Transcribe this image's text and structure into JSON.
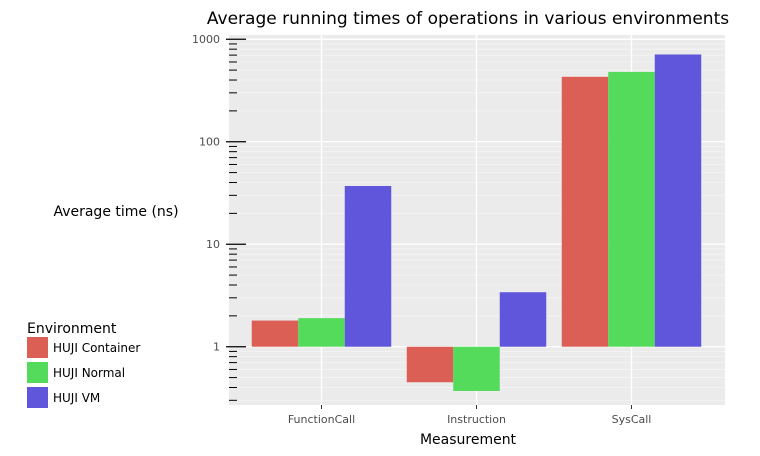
{
  "chart_data": {
    "type": "bar",
    "title": "Average running times of operations in various environments",
    "xlabel": "Measurement",
    "ylabel": "Average time (ns)",
    "y_scale": "log10",
    "ylim": [
      0.27,
      1100
    ],
    "y_ticks": [
      1,
      10,
      100,
      1000
    ],
    "y_tick_labels": [
      "1",
      "10",
      "100",
      "1000"
    ],
    "categories": [
      "FunctionCall",
      "Instruction",
      "SysCall"
    ],
    "series": [
      {
        "name": "HUJI Container",
        "color": "#dc5f56",
        "values": [
          1.8,
          0.45,
          430
        ]
      },
      {
        "name": "HUJI Normal",
        "color": "#55db5c",
        "values": [
          1.9,
          0.37,
          480
        ]
      },
      {
        "name": "HUJI VM",
        "color": "#5f56dc",
        "values": [
          37,
          3.4,
          710
        ]
      }
    ],
    "bar_baseline": 1,
    "grid": true,
    "panel_background": "#ebebeb",
    "legend": {
      "title": "Environment",
      "position": "left-bottom"
    }
  }
}
